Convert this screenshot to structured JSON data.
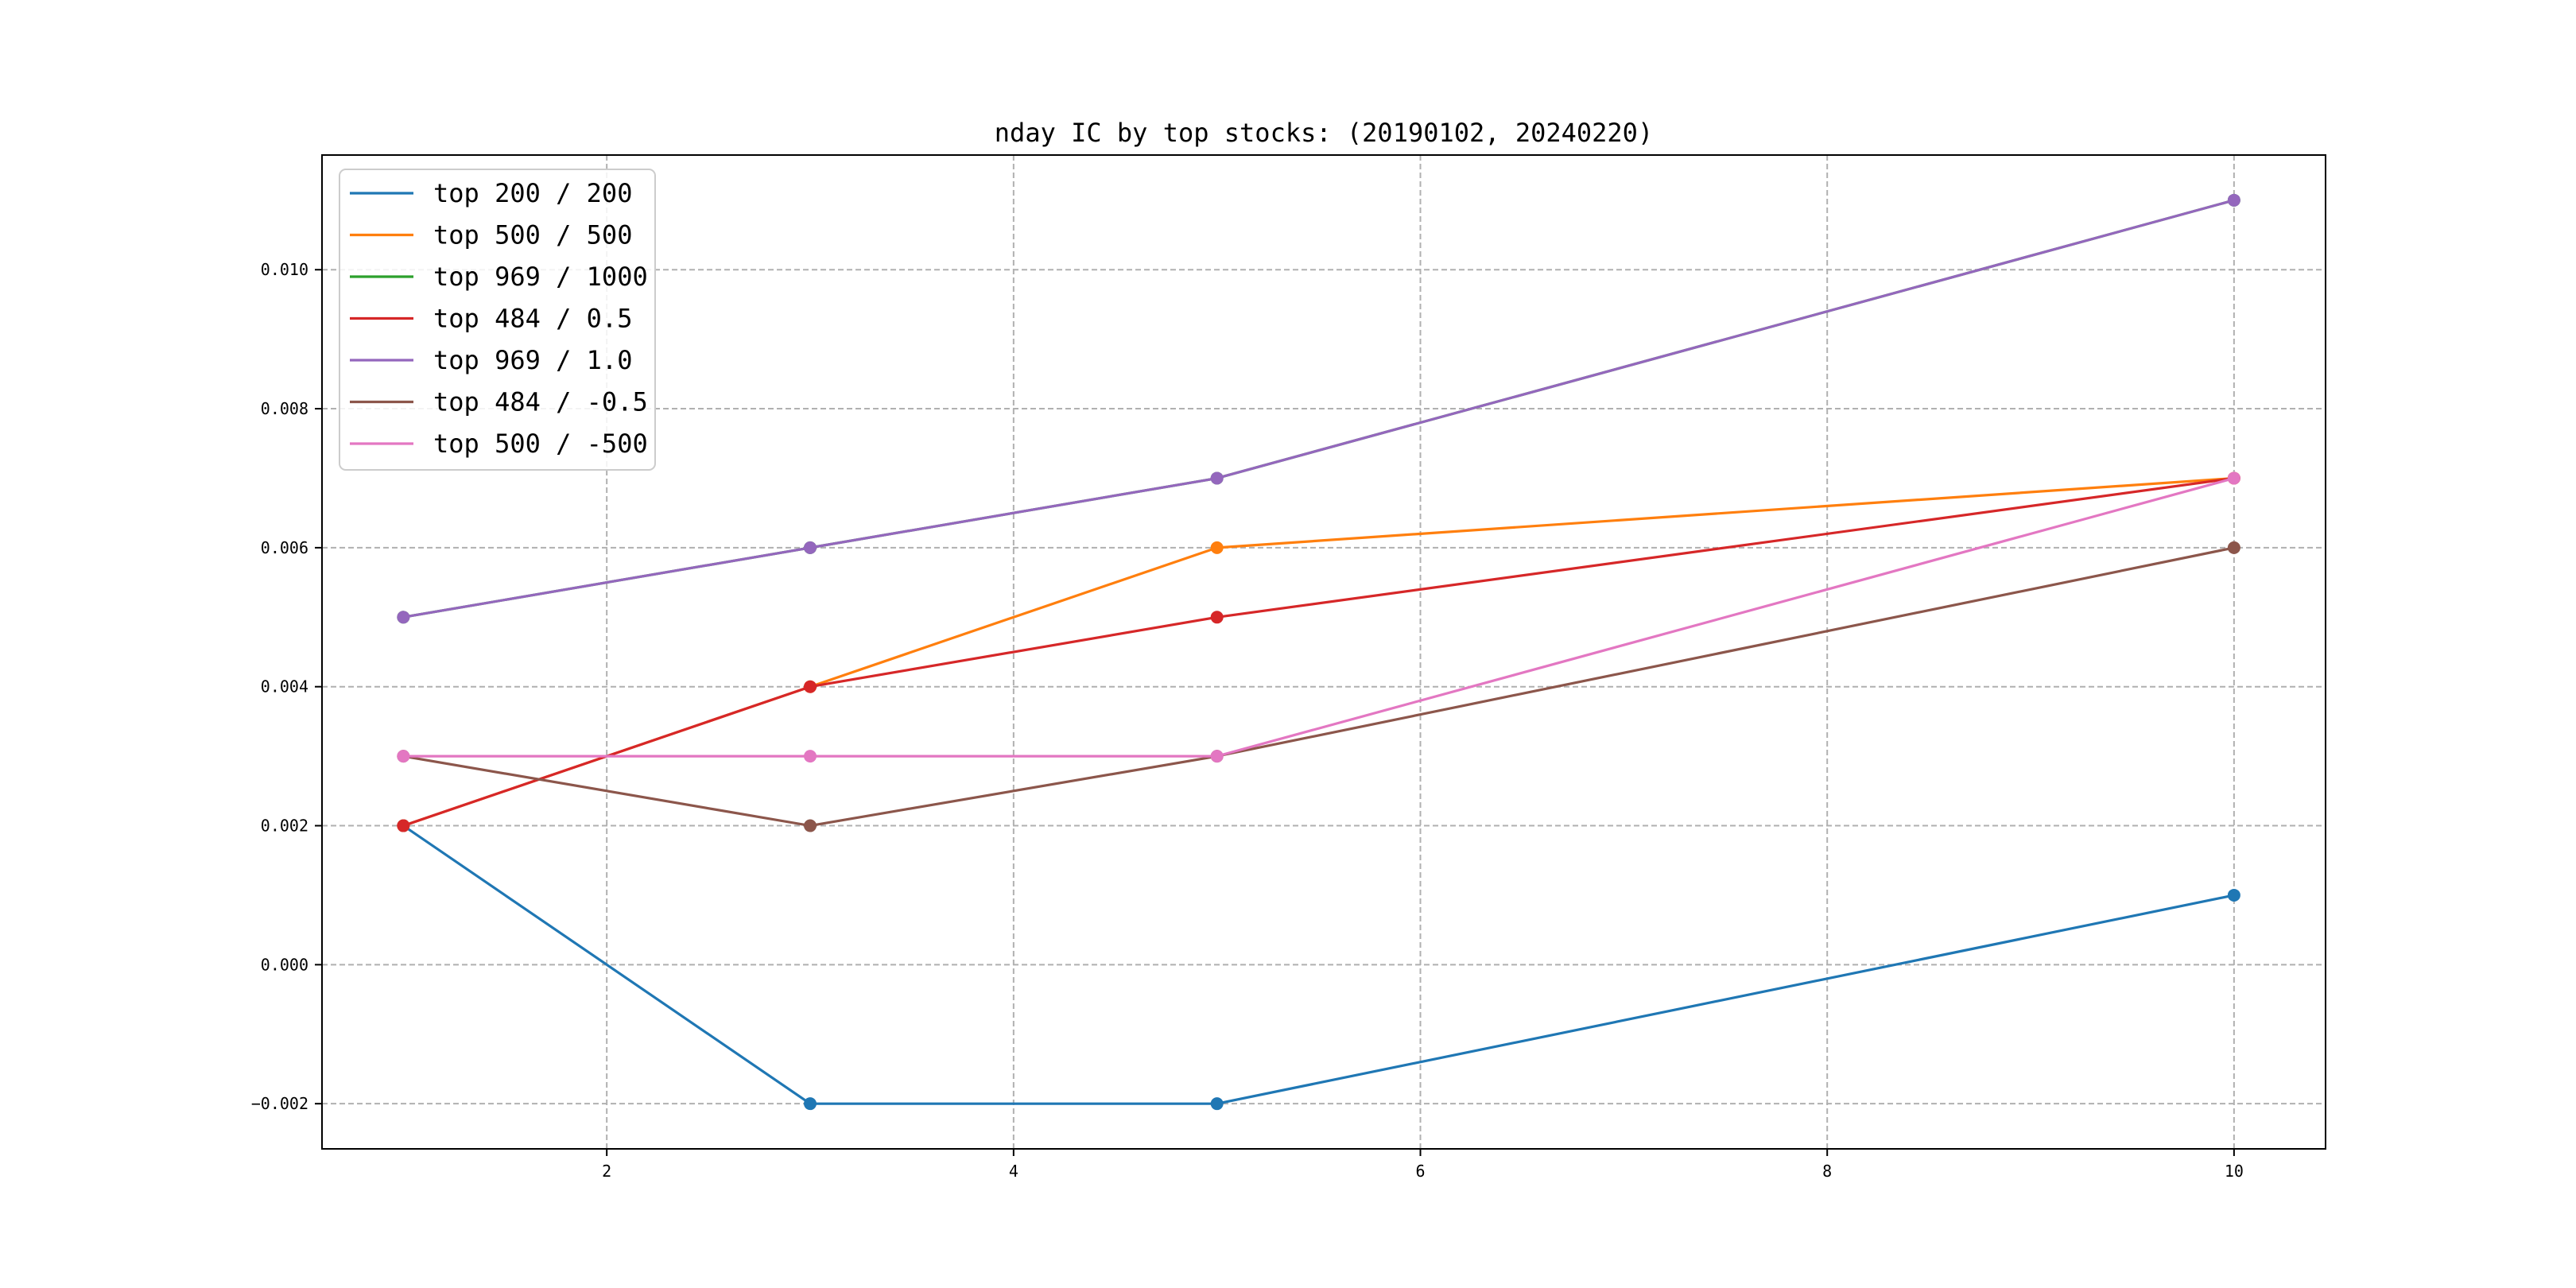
{
  "chart_data": {
    "type": "line",
    "title": "nday IC by top stocks: (20190102, 20240220)",
    "xlabel": "",
    "ylabel": "",
    "x": [
      1,
      3,
      5,
      10
    ],
    "xlim": [
      0.6,
      10.45
    ],
    "ylim": [
      -0.00265,
      0.01165
    ],
    "xticks": [
      2,
      4,
      6,
      8,
      10
    ],
    "xtick_labels": [
      "2",
      "4",
      "6",
      "8",
      "10"
    ],
    "yticks": [
      -0.002,
      0.0,
      0.002,
      0.004,
      0.006,
      0.008,
      0.01
    ],
    "ytick_labels": [
      "−0.002",
      "0.000",
      "0.002",
      "0.004",
      "0.006",
      "0.008",
      "0.010"
    ],
    "grid": true,
    "legend_position": "upper-left",
    "series": [
      {
        "name": "top 200 / 200",
        "color": "#1f77b4",
        "values": [
          0.002,
          -0.002,
          -0.002,
          0.001
        ]
      },
      {
        "name": "top 500 / 500",
        "color": "#ff7f0e",
        "values": [
          0.002,
          0.004,
          0.006,
          0.007
        ]
      },
      {
        "name": "top 969 / 1000",
        "color": "#2ca02c",
        "values": [
          0.005,
          0.006,
          0.007,
          0.011
        ]
      },
      {
        "name": "top 484 / 0.5",
        "color": "#d62728",
        "values": [
          0.002,
          0.004,
          0.005,
          0.007
        ]
      },
      {
        "name": "top 969 / 1.0",
        "color": "#9467bd",
        "values": [
          0.005,
          0.006,
          0.007,
          0.011
        ]
      },
      {
        "name": "top 484 / -0.5",
        "color": "#8c564b",
        "values": [
          0.003,
          0.002,
          0.003,
          0.006
        ]
      },
      {
        "name": "top 500 / -500",
        "color": "#e377c2",
        "values": [
          0.003,
          0.003,
          0.003,
          0.007
        ]
      }
    ]
  }
}
